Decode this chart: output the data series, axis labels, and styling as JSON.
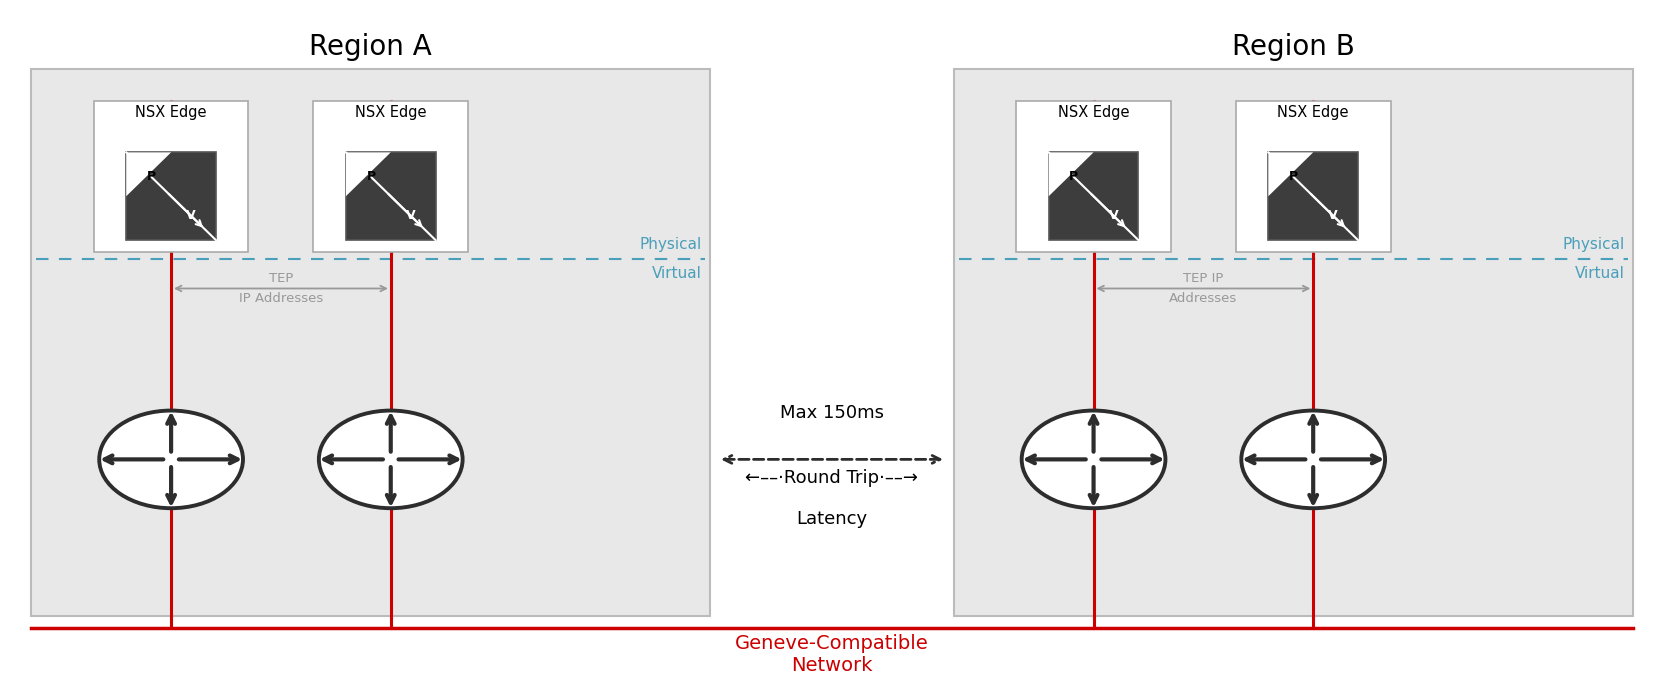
{
  "title_a": "Region A",
  "title_b": "Region B",
  "region_bg_color": "#e8e8e8",
  "region_border_color": "#bbbbbb",
  "nsx_icon_dark": "#3d3d3d",
  "nsx_icon_light": "#ffffff",
  "physical_virtual_color": "#4a9fba",
  "dashed_line_color": "#4a9fba",
  "tep_arrow_color": "#999999",
  "network_line_color": "#cc0000",
  "network_label_color": "#cc0000",
  "latency_text1": "Max 150ms",
  "latency_text2": "←––·Round Trip·––→",
  "latency_text3": "Latency",
  "router_color": "#2d2d2d",
  "figsize": [
    16.64,
    6.84
  ],
  "dpi": 100,
  "bg_color": "#ffffff"
}
